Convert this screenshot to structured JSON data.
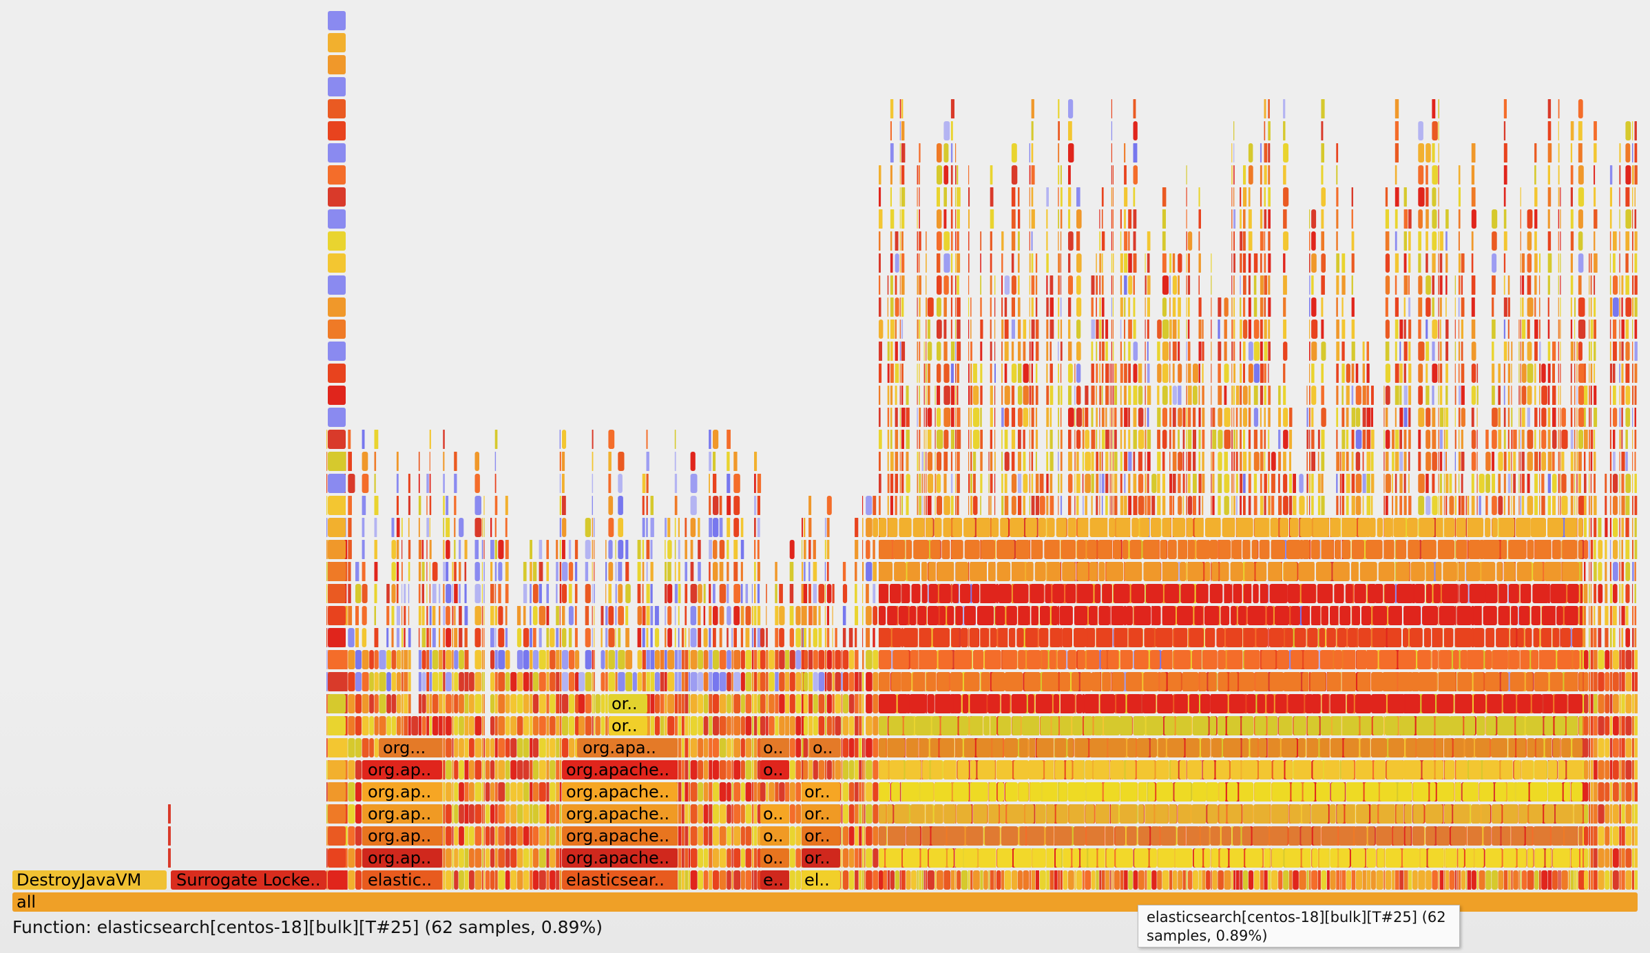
{
  "graph": {
    "root_label": "all",
    "root_color": "#efa027",
    "thread_frames": [
      {
        "label": "DestroyJavaVM",
        "color": "#f0c133"
      },
      {
        "label": "Surrogate Locke..",
        "color": "#d92d1e"
      }
    ],
    "stack_labels": [
      {
        "label": "elastic..",
        "color": "#e85b1e"
      },
      {
        "label": "org.ap..",
        "color": "#d0281d"
      },
      {
        "label": "org.ap..",
        "color": "#e8751f"
      },
      {
        "label": "org.ap..",
        "color": "#f09a24"
      },
      {
        "label": "org.ap..",
        "color": "#f6a624"
      },
      {
        "label": "org.ap..",
        "color": "#e0251c"
      },
      {
        "label": "org...",
        "color": "#e47a28"
      },
      {
        "label": "elasticsear..",
        "color": "#e85b1e"
      },
      {
        "label": "org.apache..",
        "color": "#d0281d"
      },
      {
        "label": "org.apache..",
        "color": "#e8751f"
      },
      {
        "label": "org.apache..",
        "color": "#f09a24"
      },
      {
        "label": "org.apache..",
        "color": "#f6a624"
      },
      {
        "label": "org.apache..",
        "color": "#e0251c"
      },
      {
        "label": "org.apa..",
        "color": "#e47a28"
      },
      {
        "label": "or..",
        "color": "#f1cf2a"
      },
      {
        "label": "or..",
        "color": "#e2d22e"
      },
      {
        "label": "e..",
        "color": "#d0281d"
      },
      {
        "label": "o..",
        "color": "#e8751f"
      },
      {
        "label": "o..",
        "color": "#f09a24"
      },
      {
        "label": "o..",
        "color": "#f6a624"
      },
      {
        "label": "o..",
        "color": "#e0251c"
      },
      {
        "label": "o..",
        "color": "#e47a28"
      },
      {
        "label": "el..",
        "color": "#f1cf2a"
      },
      {
        "label": "or..",
        "color": "#d0281d"
      },
      {
        "label": "or..",
        "color": "#e8751f"
      },
      {
        "label": "or..",
        "color": "#f09a24"
      },
      {
        "label": "or..",
        "color": "#f6a624"
      },
      {
        "label": "o..",
        "color": "#e47a28"
      }
    ]
  },
  "status": {
    "function_text": "Function: elasticsearch[centos-18][bulk][T#25] (62 samples, 0.89%)"
  },
  "tooltip": {
    "text": "elasticsearch[centos-18][bulk][T#25] (62 samples, 0.89%)"
  }
}
